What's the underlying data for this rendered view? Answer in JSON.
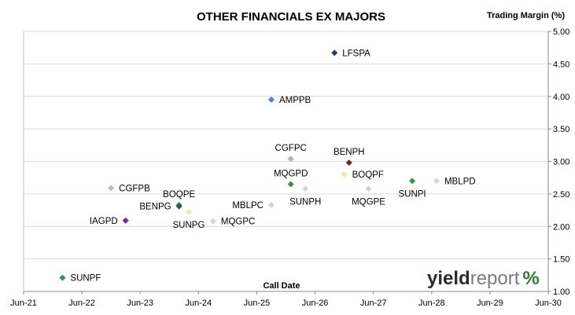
{
  "chart_data": {
    "type": "scatter",
    "title": "OTHER FINANCIALS EX MAJORS",
    "ylabel": "Trading Margin (%)",
    "xlabel": "Call Date",
    "x_ticks": [
      "Jun-21",
      "Jun-22",
      "Jun-23",
      "Jun-24",
      "Jun-25",
      "Jun-26",
      "Jun-27",
      "Jun-28",
      "Jun-29",
      "Jun-30"
    ],
    "y_ticks": [
      "1.00",
      "1.50",
      "2.00",
      "2.50",
      "3.00",
      "3.50",
      "4.00",
      "4.50",
      "5.00"
    ],
    "xlim": [
      "2021-06",
      "2030-06"
    ],
    "ylim": [
      1.0,
      5.0
    ],
    "y_axis_side": "right",
    "grid": "horizontal",
    "points": [
      {
        "label": "LFSPA",
        "x": "2026-10",
        "y": 4.67,
        "color": "#1f3f7a",
        "label_pos": "right"
      },
      {
        "label": "AMPPB",
        "x": "2025-09",
        "y": 3.95,
        "color": "#4a86c8",
        "label_pos": "right"
      },
      {
        "label": "CGFPC",
        "x": "2026-01",
        "y": 3.04,
        "color": "#9dc39a",
        "label_pos": "above"
      },
      {
        "label": "BENPH",
        "x": "2027-01",
        "y": 2.98,
        "color": "#6b2a1f",
        "label_pos": "above"
      },
      {
        "label": "BOQPF",
        "x": "2026-12",
        "y": 2.8,
        "color": "#f2e79a",
        "label_pos": "right"
      },
      {
        "label": "MQGPD",
        "x": "2026-01",
        "y": 2.65,
        "color": "#3f8f3f",
        "label_pos": "above"
      },
      {
        "label": "SUNPH",
        "x": "2026-04",
        "y": 2.58,
        "color": "#c9d7ea",
        "label_pos": "below"
      },
      {
        "label": "MQGPE",
        "x": "2027-05",
        "y": 2.58,
        "color": "#c9d7ea",
        "label_pos": "below"
      },
      {
        "label": "SUNPI",
        "x": "2028-02",
        "y": 2.7,
        "color": "#29a329",
        "label_pos": "below"
      },
      {
        "label": "MBLPD",
        "x": "2028-07",
        "y": 2.7,
        "color": "#c9d7ea",
        "label_pos": "right"
      },
      {
        "label": "CGFPB",
        "x": "2022-12",
        "y": 2.59,
        "color": "#a9cd9b",
        "label_pos": "right"
      },
      {
        "label": "BOQPE",
        "x": "2024-02",
        "y": 2.33,
        "color": "#1a9e7a",
        "label_pos": "above"
      },
      {
        "label": "BENPG",
        "x": "2024-02",
        "y": 2.31,
        "color": "#2e5e3c",
        "label_pos": "left"
      },
      {
        "label": "SUNPG",
        "x": "2024-04",
        "y": 2.22,
        "color": "#f2e79a",
        "label_pos": "below"
      },
      {
        "label": "MBLPC",
        "x": "2025-09",
        "y": 2.33,
        "color": "#c9d7ea",
        "label_pos": "left"
      },
      {
        "label": "MQGPC",
        "x": "2024-09",
        "y": 2.08,
        "color": "#c9d7ea",
        "label_pos": "right"
      },
      {
        "label": "IAGPD",
        "x": "2023-03",
        "y": 2.09,
        "color": "#6a2fa0",
        "label_pos": "left"
      },
      {
        "label": "SUNPF",
        "x": "2022-02",
        "y": 1.21,
        "color": "#1aa34a",
        "label_pos": "right"
      }
    ]
  },
  "brand": {
    "part1": "yield",
    "part2": "report",
    "part3": "%"
  }
}
